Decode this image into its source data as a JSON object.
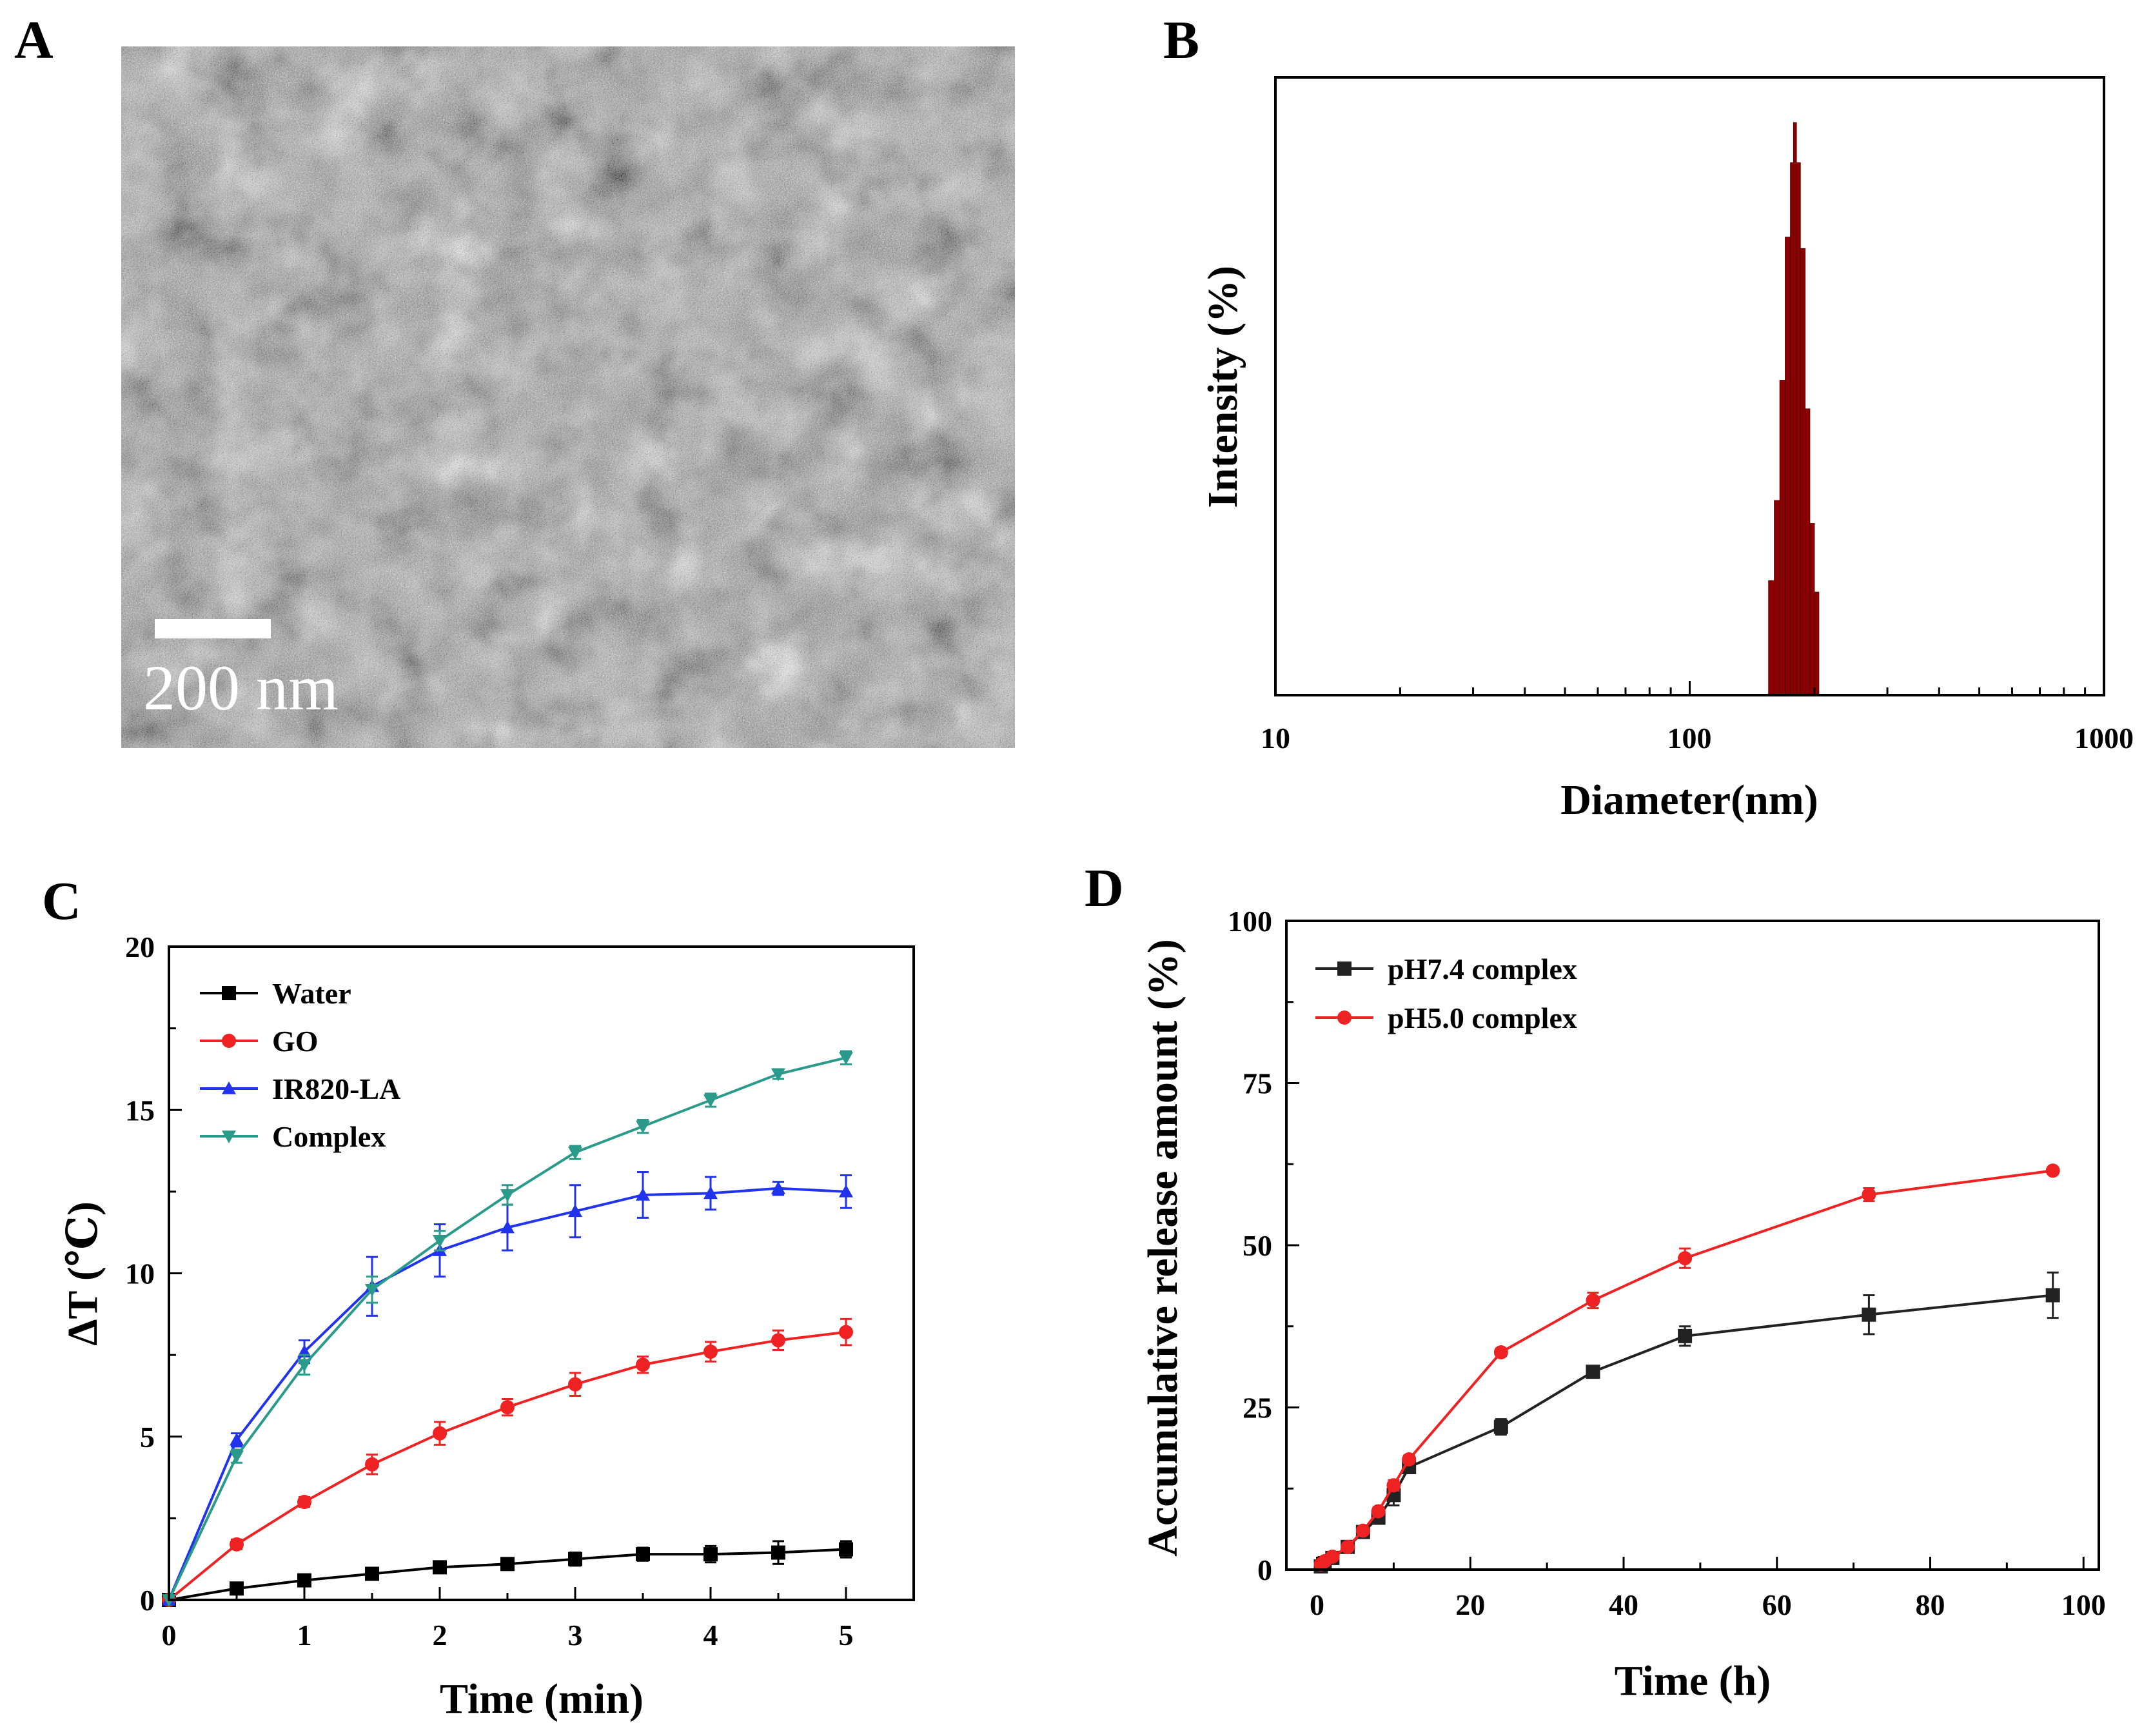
{
  "panels": {
    "A": {
      "letter": "A",
      "scalebar_label": "200 nm"
    },
    "B": {
      "letter": "B"
    },
    "C": {
      "letter": "C"
    },
    "D": {
      "letter": "D"
    }
  },
  "colors": {
    "water": "#000000",
    "go": "#ee2222",
    "ir820": "#2233ee",
    "complex": "#2a9a8a",
    "ph74": "#222222",
    "ph50": "#ee2222",
    "histogram": "#8b0000",
    "tem_bg": "#8a8a8a"
  },
  "chart_data": [
    {
      "panel": "B",
      "type": "bar",
      "title": "",
      "xlabel": "Diameter(nm)",
      "ylabel": "Intensity (%)",
      "xscale": "log",
      "xlim": [
        10,
        1000
      ],
      "ylim": [
        0,
        100
      ],
      "xticks": [
        10,
        100,
        1000
      ],
      "xtick_labels": [
        "10",
        "100",
        "1000"
      ],
      "bins": [
        {
          "lo": 155,
          "hi": 160,
          "value": 20
        },
        {
          "lo": 160,
          "hi": 165,
          "value": 34
        },
        {
          "lo": 165,
          "hi": 170,
          "value": 55
        },
        {
          "lo": 170,
          "hi": 175,
          "value": 80
        },
        {
          "lo": 175,
          "hi": 178,
          "value": 93
        },
        {
          "lo": 178,
          "hi": 181,
          "value": 100
        },
        {
          "lo": 181,
          "hi": 185,
          "value": 93
        },
        {
          "lo": 185,
          "hi": 190,
          "value": 78
        },
        {
          "lo": 190,
          "hi": 195,
          "value": 50
        },
        {
          "lo": 195,
          "hi": 200,
          "value": 30
        },
        {
          "lo": 200,
          "hi": 205,
          "value": 18
        }
      ]
    },
    {
      "panel": "C",
      "type": "line",
      "xlabel": "Time (min)",
      "ylabel": "ΔT (℃)",
      "xlim": [
        0,
        5.5
      ],
      "ylim": [
        0,
        20
      ],
      "xticks": [
        0,
        1,
        2,
        3,
        4,
        5
      ],
      "yticks": [
        0,
        5,
        10,
        15,
        20
      ],
      "legend": "top-left",
      "x": [
        0,
        0.5,
        1,
        1.5,
        2,
        2.5,
        3,
        3.5,
        4,
        4.5,
        5
      ],
      "series": [
        {
          "name": "Water",
          "marker": "square",
          "color_key": "water",
          "values": [
            0,
            0.35,
            0.6,
            0.8,
            1.0,
            1.1,
            1.25,
            1.4,
            1.4,
            1.45,
            1.55
          ],
          "errors": [
            0,
            0.1,
            0.1,
            0.15,
            0.15,
            0.15,
            0.2,
            0.2,
            0.25,
            0.35,
            0.25
          ]
        },
        {
          "name": "GO",
          "marker": "circle",
          "color_key": "go",
          "values": [
            0,
            1.7,
            3.0,
            4.15,
            5.1,
            5.9,
            6.6,
            7.2,
            7.6,
            7.95,
            8.2
          ],
          "errors": [
            0,
            0.15,
            0.15,
            0.3,
            0.35,
            0.25,
            0.35,
            0.25,
            0.3,
            0.3,
            0.4
          ]
        },
        {
          "name": "IR820-LA",
          "marker": "triangle-up",
          "color_key": "ir820",
          "values": [
            0,
            4.9,
            7.6,
            9.6,
            10.7,
            11.4,
            11.9,
            12.4,
            12.45,
            12.6,
            12.5
          ],
          "errors": [
            0,
            0.2,
            0.35,
            0.9,
            0.8,
            0.7,
            0.8,
            0.7,
            0.5,
            0.2,
            0.5
          ]
        },
        {
          "name": "Complex",
          "marker": "triangle-down",
          "color_key": "complex",
          "values": [
            0,
            4.4,
            7.2,
            9.5,
            11.0,
            12.4,
            13.7,
            14.5,
            15.3,
            16.1,
            16.6
          ],
          "errors": [
            0,
            0.2,
            0.3,
            0.4,
            0.3,
            0.3,
            0.2,
            0.2,
            0.2,
            0.15,
            0.2
          ]
        }
      ]
    },
    {
      "panel": "D",
      "type": "line",
      "xlabel": "Time (h)",
      "ylabel": "Accumulative release amount (%)",
      "xlim": [
        -4,
        102
      ],
      "ylim": [
        0,
        100
      ],
      "xticks": [
        0,
        20,
        40,
        60,
        80,
        100
      ],
      "yticks": [
        0,
        25,
        50,
        75,
        100
      ],
      "legend": "top-left",
      "series": [
        {
          "name": "pH7.4 complex",
          "marker": "square",
          "color_key": "ph74",
          "x": [
            0.5,
            1,
            2,
            4,
            6,
            8,
            10,
            12,
            24,
            36,
            48,
            72,
            96
          ],
          "values": [
            0.5,
            1.0,
            1.8,
            3.5,
            5.8,
            8.0,
            11.5,
            15.8,
            22.0,
            30.5,
            36.0,
            39.3,
            42.3
          ],
          "errors": [
            0.2,
            0.2,
            0.3,
            0.4,
            0.5,
            0.8,
            1.6,
            0.8,
            1.2,
            0.8,
            1.5,
            3.0,
            3.5
          ]
        },
        {
          "name": "pH5.0 complex",
          "marker": "circle",
          "color_key": "ph50",
          "x": [
            0.5,
            1,
            2,
            4,
            6,
            8,
            10,
            12,
            24,
            36,
            48,
            72,
            96
          ],
          "values": [
            0.8,
            1.3,
            2.0,
            3.5,
            6.0,
            9.0,
            13.0,
            17.0,
            33.5,
            41.5,
            48.0,
            57.8,
            61.5
          ],
          "errors": [
            0.2,
            0.2,
            0.3,
            0.4,
            0.5,
            0.6,
            0.8,
            0.6,
            0.6,
            1.2,
            1.5,
            1.0,
            0.5
          ]
        }
      ]
    }
  ]
}
